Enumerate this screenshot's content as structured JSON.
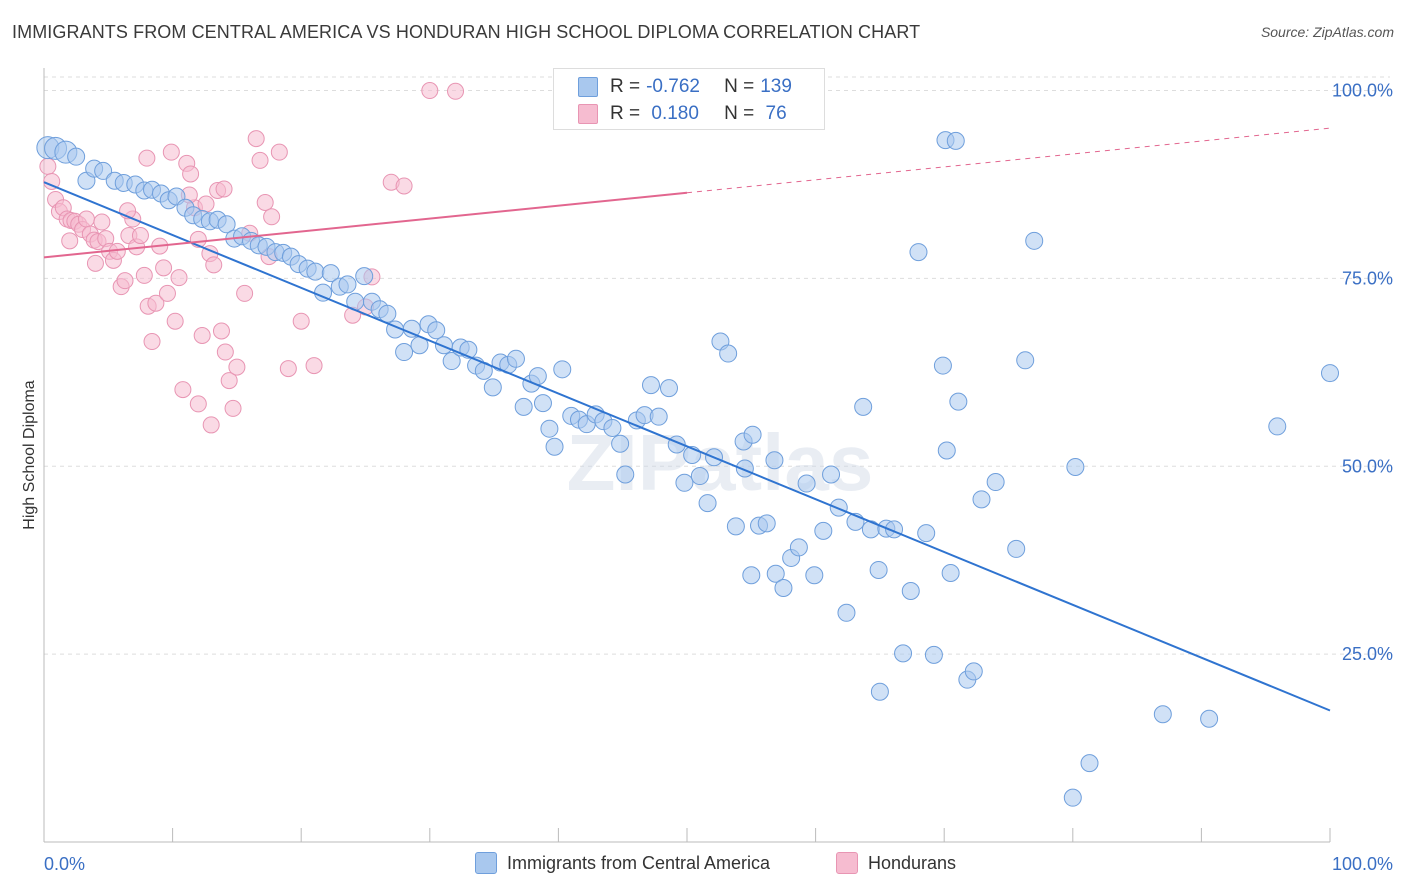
{
  "title": "IMMIGRANTS FROM CENTRAL AMERICA VS HONDURAN HIGH SCHOOL DIPLOMA CORRELATION CHART",
  "source": "Source: ZipAtlas.com",
  "watermark": "ZIPatlas",
  "legend": {
    "rows": [
      {
        "r_label": "R =",
        "r_value": "-0.762",
        "n_label": "N =",
        "n_value": "139"
      },
      {
        "r_label": "R =",
        "r_value": " 0.180",
        "n_label": "N =",
        "n_value": " 76"
      }
    ]
  },
  "bottom_legend": [
    "Immigrants from Central America",
    "Hondurans"
  ],
  "colors": {
    "blue_fill": "#a9c8ee",
    "blue_stroke": "#6f9fdc",
    "blue_line": "#2f74d0",
    "pink_fill": "#f6bcd0",
    "pink_stroke": "#e895b3",
    "pink_line": "#e2668f",
    "axis_text": "#3a6fc4",
    "grid": "#dddddd"
  },
  "chart_data": {
    "type": "scatter",
    "title": "IMMIGRANTS FROM CENTRAL AMERICA VS HONDURAN HIGH SCHOOL DIPLOMA CORRELATION CHART",
    "xlabel": "",
    "ylabel": "High School Diploma",
    "xlim": [
      0,
      100
    ],
    "ylim": [
      0,
      105
    ],
    "x_tick_labels": [
      "0.0%",
      "100.0%"
    ],
    "y_tick_labels": [
      "25.0%",
      "50.0%",
      "75.0%",
      "100.0%"
    ],
    "y_ticks": [
      25,
      50,
      75,
      100
    ],
    "grid": true,
    "legend_position": "top-center",
    "series": [
      {
        "name": "Immigrants from Central America",
        "r": -0.762,
        "n": 139,
        "trend": {
          "x0": 0,
          "y0": 87.8,
          "x1": 100,
          "y1": 17.5,
          "dashed_from": null
        },
        "points": [
          [
            0.3,
            92.4
          ],
          [
            0.9,
            92.3
          ],
          [
            1.7,
            91.8
          ],
          [
            2.5,
            91.2
          ],
          [
            3.3,
            88.0
          ],
          [
            3.9,
            89.6
          ],
          [
            4.6,
            89.3
          ],
          [
            5.5,
            88.0
          ],
          [
            6.2,
            87.7
          ],
          [
            7.1,
            87.5
          ],
          [
            7.8,
            86.7
          ],
          [
            8.4,
            86.8
          ],
          [
            9.1,
            86.3
          ],
          [
            9.7,
            85.4
          ],
          [
            10.3,
            85.9
          ],
          [
            11.0,
            84.4
          ],
          [
            11.6,
            83.4
          ],
          [
            12.3,
            82.9
          ],
          [
            12.9,
            82.6
          ],
          [
            13.5,
            82.8
          ],
          [
            14.2,
            82.2
          ],
          [
            14.8,
            80.3
          ],
          [
            15.4,
            80.6
          ],
          [
            16.1,
            80.0
          ],
          [
            16.7,
            79.4
          ],
          [
            17.3,
            79.2
          ],
          [
            18.0,
            78.5
          ],
          [
            18.6,
            78.4
          ],
          [
            19.2,
            77.9
          ],
          [
            19.8,
            76.9
          ],
          [
            20.5,
            76.3
          ],
          [
            21.1,
            75.9
          ],
          [
            21.7,
            73.1
          ],
          [
            22.3,
            75.7
          ],
          [
            23.0,
            73.9
          ],
          [
            23.6,
            74.2
          ],
          [
            24.2,
            71.9
          ],
          [
            24.9,
            75.3
          ],
          [
            25.5,
            71.9
          ],
          [
            26.1,
            70.9
          ],
          [
            26.7,
            70.3
          ],
          [
            27.3,
            68.2
          ],
          [
            28.0,
            65.2
          ],
          [
            28.6,
            68.3
          ],
          [
            29.2,
            66.1
          ],
          [
            29.9,
            68.9
          ],
          [
            30.5,
            68.1
          ],
          [
            31.1,
            66.1
          ],
          [
            31.7,
            64.0
          ],
          [
            32.4,
            65.8
          ],
          [
            33.0,
            65.5
          ],
          [
            33.6,
            63.4
          ],
          [
            34.2,
            62.7
          ],
          [
            34.9,
            60.5
          ],
          [
            35.5,
            63.8
          ],
          [
            36.1,
            63.5
          ],
          [
            36.7,
            64.3
          ],
          [
            37.3,
            57.9
          ],
          [
            37.9,
            61.0
          ],
          [
            38.4,
            62.0
          ],
          [
            38.8,
            58.4
          ],
          [
            39.3,
            55.0
          ],
          [
            39.7,
            52.6
          ],
          [
            40.3,
            62.9
          ],
          [
            41.0,
            56.7
          ],
          [
            41.6,
            56.2
          ],
          [
            42.2,
            55.6
          ],
          [
            42.9,
            56.9
          ],
          [
            43.5,
            56.0
          ],
          [
            44.2,
            55.1
          ],
          [
            44.8,
            53.0
          ],
          [
            45.2,
            48.9
          ],
          [
            46.1,
            56.1
          ],
          [
            46.7,
            56.8
          ],
          [
            47.2,
            60.8
          ],
          [
            47.8,
            56.6
          ],
          [
            48.6,
            60.4
          ],
          [
            49.2,
            52.9
          ],
          [
            49.8,
            47.8
          ],
          [
            50.4,
            51.5
          ],
          [
            51.0,
            48.7
          ],
          [
            51.6,
            45.1
          ],
          [
            52.1,
            51.2
          ],
          [
            52.6,
            66.6
          ],
          [
            53.2,
            65.0
          ],
          [
            53.8,
            42.0
          ],
          [
            54.4,
            53.3
          ],
          [
            55.0,
            35.5
          ],
          [
            55.6,
            42.1
          ],
          [
            56.2,
            42.4
          ],
          [
            56.9,
            35.7
          ],
          [
            57.5,
            33.8
          ],
          [
            58.1,
            37.8
          ],
          [
            58.7,
            39.2
          ],
          [
            59.3,
            47.7
          ],
          [
            59.9,
            35.5
          ],
          [
            60.6,
            41.4
          ],
          [
            61.2,
            48.9
          ],
          [
            61.8,
            44.5
          ],
          [
            62.4,
            30.5
          ],
          [
            63.1,
            42.6
          ],
          [
            63.7,
            57.9
          ],
          [
            64.3,
            41.6
          ],
          [
            64.9,
            36.2
          ],
          [
            65.5,
            41.7
          ],
          [
            66.1,
            41.6
          ],
          [
            66.8,
            25.1
          ],
          [
            67.4,
            33.4
          ],
          [
            68.0,
            78.5
          ],
          [
            68.6,
            41.1
          ],
          [
            69.2,
            24.9
          ],
          [
            69.9,
            63.4
          ],
          [
            70.5,
            35.8
          ],
          [
            71.1,
            58.6
          ],
          [
            71.8,
            21.6
          ],
          [
            72.3,
            22.7
          ],
          [
            70.2,
            52.1
          ],
          [
            74.0,
            47.9
          ],
          [
            75.6,
            39.0
          ],
          [
            65.0,
            20.0
          ],
          [
            72.9,
            45.6
          ],
          [
            76.3,
            64.1
          ],
          [
            80.2,
            49.9
          ],
          [
            81.3,
            10.5
          ],
          [
            77.0,
            80.0
          ],
          [
            70.1,
            93.4
          ],
          [
            56.8,
            50.8
          ],
          [
            55.1,
            54.2
          ],
          [
            54.5,
            49.7
          ],
          [
            87.0,
            17.0
          ],
          [
            90.6,
            16.4
          ],
          [
            95.9,
            55.3
          ],
          [
            100.0,
            62.4
          ],
          [
            80.0,
            5.9
          ],
          [
            70.9,
            93.3
          ],
          [
            60.0,
            99.9
          ],
          [
            45.0,
            100.0
          ]
        ]
      },
      {
        "name": "Hondurans",
        "r": 0.18,
        "n": 76,
        "trend": {
          "x0": 0,
          "y0": 77.8,
          "x1": 100,
          "y1": 95.0,
          "dashed_from": 50
        },
        "points": [
          [
            0.3,
            89.9
          ],
          [
            0.6,
            87.9
          ],
          [
            0.9,
            85.5
          ],
          [
            1.2,
            83.9
          ],
          [
            1.5,
            84.4
          ],
          [
            1.8,
            82.9
          ],
          [
            2.1,
            82.7
          ],
          [
            2.4,
            82.6
          ],
          [
            2.7,
            82.2
          ],
          [
            3.0,
            81.5
          ],
          [
            3.3,
            82.9
          ],
          [
            3.6,
            80.9
          ],
          [
            3.9,
            80.1
          ],
          [
            4.2,
            79.9
          ],
          [
            4.5,
            82.5
          ],
          [
            4.8,
            80.3
          ],
          [
            5.1,
            78.6
          ],
          [
            5.4,
            77.4
          ],
          [
            5.7,
            78.6
          ],
          [
            6.0,
            73.9
          ],
          [
            6.3,
            74.7
          ],
          [
            6.6,
            80.7
          ],
          [
            6.9,
            82.9
          ],
          [
            7.2,
            79.2
          ],
          [
            7.5,
            80.7
          ],
          [
            7.8,
            75.4
          ],
          [
            8.1,
            71.3
          ],
          [
            8.4,
            66.6
          ],
          [
            8.7,
            71.7
          ],
          [
            9.0,
            79.3
          ],
          [
            9.3,
            76.4
          ],
          [
            9.6,
            73.0
          ],
          [
            9.9,
            91.8
          ],
          [
            10.2,
            69.3
          ],
          [
            10.5,
            75.1
          ],
          [
            10.8,
            60.2
          ],
          [
            11.1,
            90.3
          ],
          [
            11.4,
            88.9
          ],
          [
            11.7,
            84.4
          ],
          [
            12.0,
            80.2
          ],
          [
            12.3,
            67.4
          ],
          [
            12.6,
            84.9
          ],
          [
            12.9,
            78.3
          ],
          [
            13.2,
            76.8
          ],
          [
            13.5,
            86.7
          ],
          [
            13.8,
            68.0
          ],
          [
            14.1,
            65.2
          ],
          [
            14.4,
            61.4
          ],
          [
            14.7,
            57.7
          ],
          [
            15.0,
            63.2
          ],
          [
            15.6,
            73.0
          ],
          [
            16.5,
            93.6
          ],
          [
            16.8,
            90.7
          ],
          [
            17.2,
            85.1
          ],
          [
            17.7,
            83.2
          ],
          [
            18.3,
            91.8
          ],
          [
            20.0,
            69.3
          ],
          [
            21.0,
            63.4
          ],
          [
            24.0,
            70.1
          ],
          [
            25.0,
            71.2
          ],
          [
            25.5,
            75.2
          ],
          [
            27.0,
            87.8
          ],
          [
            28.0,
            87.3
          ],
          [
            30.0,
            100.0
          ],
          [
            32.0,
            99.9
          ],
          [
            6.5,
            84.0
          ],
          [
            11.3,
            86.1
          ],
          [
            13.0,
            55.5
          ],
          [
            12.0,
            58.3
          ],
          [
            14.0,
            86.9
          ],
          [
            16.0,
            81.0
          ],
          [
            17.5,
            77.9
          ],
          [
            19.0,
            63.0
          ],
          [
            2.0,
            80.0
          ],
          [
            4.0,
            77.0
          ],
          [
            8.0,
            91.0
          ]
        ]
      }
    ]
  }
}
